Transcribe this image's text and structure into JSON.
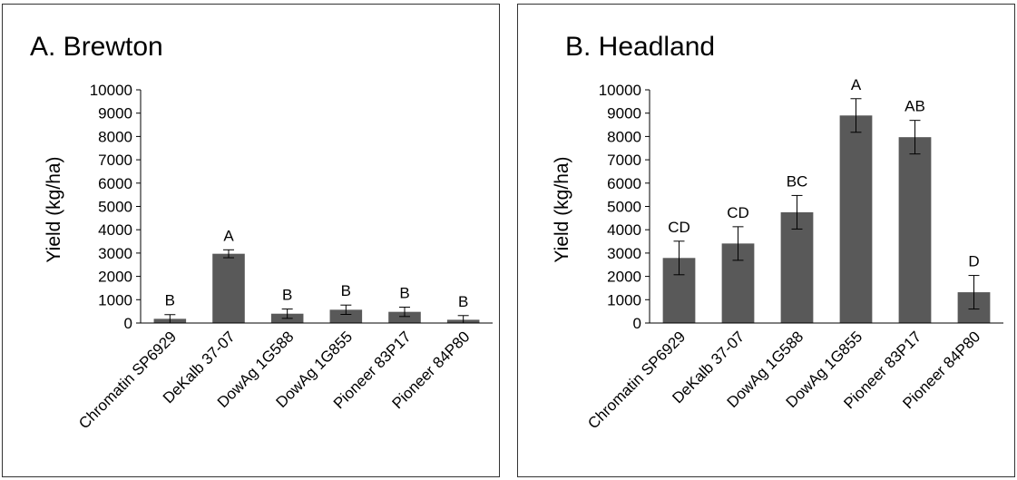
{
  "chart_data": [
    {
      "type": "bar",
      "title": "A. Brewton",
      "ylabel": "Yield (kg/ha)",
      "xlabel": "",
      "ylim": [
        0,
        10000
      ],
      "yticks": [
        "0",
        "1000",
        "2000",
        "3000",
        "4000",
        "5000",
        "6000",
        "7000",
        "8000",
        "9000",
        "10000"
      ],
      "categories": [
        "Chromatin SP6929",
        "DeKalb 37-07",
        "DowAg 1G588",
        "DowAg 1G855",
        "Pioneer 83P17",
        "Pioneer 84P80"
      ],
      "values": [
        180,
        2970,
        400,
        570,
        480,
        140
      ],
      "errors": [
        180,
        170,
        200,
        200,
        200,
        180
      ],
      "letters": [
        "B",
        "A",
        "B",
        "B",
        "B",
        "B"
      ],
      "bar_color": "#595959"
    },
    {
      "type": "bar",
      "title": "B. Headland",
      "ylabel": "Yield (kg/ha)",
      "xlabel": "",
      "ylim": [
        0,
        10000
      ],
      "yticks": [
        "0",
        "1000",
        "2000",
        "3000",
        "4000",
        "5000",
        "6000",
        "7000",
        "8000",
        "9000",
        "10000"
      ],
      "categories": [
        "Chromatin SP6929",
        "DeKalb 37-07",
        "DowAg 1G588",
        "DowAg 1G855",
        "Pioneer 83P17",
        "Pioneer 84P80"
      ],
      "values": [
        2790,
        3410,
        4750,
        8900,
        7970,
        1320
      ],
      "errors": [
        720,
        720,
        720,
        720,
        720,
        720
      ],
      "letters": [
        "CD",
        "CD",
        "BC",
        "A",
        "AB",
        "D"
      ],
      "bar_color": "#595959"
    }
  ]
}
